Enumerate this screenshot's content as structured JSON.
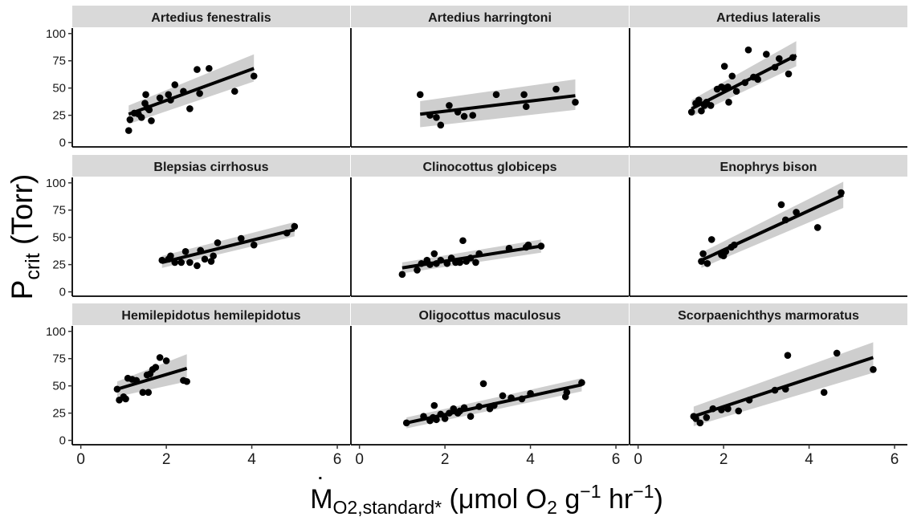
{
  "chart_data": {
    "type": "scatter",
    "layout": "facet-3x3",
    "xlabel": {
      "dot": "˙",
      "main": "M",
      "sub": "O2,standard*",
      "rest1": " (μmol O",
      "sub2": "2",
      "rest2": " g",
      "sup1": "−1",
      "rest3": " hr",
      "sup2": "−1",
      "rest4": ")"
    },
    "ylabel": {
      "main": "P",
      "sub": "crit",
      "rest": " (Torr)"
    },
    "xlim": [
      -0.2,
      6.3
    ],
    "ylim": [
      -4,
      105
    ],
    "x_ticks": [
      0,
      2,
      4,
      6
    ],
    "y_ticks": [
      0,
      25,
      50,
      75,
      100
    ],
    "fit": "linear regression with 95% confidence band",
    "panels": [
      {
        "title": "Artedius fenestralis",
        "points": [
          [
            1.12,
            11
          ],
          [
            1.15,
            21
          ],
          [
            1.25,
            27
          ],
          [
            1.35,
            26
          ],
          [
            1.42,
            23
          ],
          [
            1.5,
            36
          ],
          [
            1.52,
            44
          ],
          [
            1.55,
            32
          ],
          [
            1.6,
            30
          ],
          [
            1.65,
            20
          ],
          [
            1.85,
            41
          ],
          [
            2.05,
            44
          ],
          [
            2.1,
            39
          ],
          [
            2.2,
            53
          ],
          [
            2.4,
            47
          ],
          [
            2.55,
            31
          ],
          [
            2.72,
            67
          ],
          [
            2.78,
            45
          ],
          [
            3.0,
            68
          ],
          [
            3.6,
            47
          ],
          [
            4.05,
            61
          ]
        ],
        "fit": {
          "x": [
            1.12,
            4.05
          ],
          "y": [
            26,
            68
          ]
        },
        "band": {
          "lower": [
            17,
            56
          ],
          "upper": [
            34,
            81
          ]
        }
      },
      {
        "title": "Artedius harringtoni",
        "points": [
          [
            1.42,
            44
          ],
          [
            1.65,
            25
          ],
          [
            1.8,
            23
          ],
          [
            1.9,
            16
          ],
          [
            2.1,
            34
          ],
          [
            2.3,
            28
          ],
          [
            2.45,
            24
          ],
          [
            2.65,
            25
          ],
          [
            3.2,
            44
          ],
          [
            3.85,
            44
          ],
          [
            3.9,
            33
          ],
          [
            4.6,
            49
          ],
          [
            5.05,
            37
          ]
        ],
        "fit": {
          "x": [
            1.42,
            5.05
          ],
          "y": [
            26,
            43
          ]
        },
        "band": {
          "lower": [
            14,
            30
          ],
          "upper": [
            38,
            58
          ]
        }
      },
      {
        "title": "Artedius lateralis",
        "points": [
          [
            1.25,
            28
          ],
          [
            1.35,
            36
          ],
          [
            1.42,
            39
          ],
          [
            1.48,
            29
          ],
          [
            1.55,
            34
          ],
          [
            1.6,
            37
          ],
          [
            1.7,
            34
          ],
          [
            1.85,
            49
          ],
          [
            1.95,
            51
          ],
          [
            2.0,
            50
          ],
          [
            2.02,
            70
          ],
          [
            2.1,
            51
          ],
          [
            2.12,
            37
          ],
          [
            2.2,
            61
          ],
          [
            2.3,
            47
          ],
          [
            2.5,
            55
          ],
          [
            2.58,
            85
          ],
          [
            2.7,
            60
          ],
          [
            2.8,
            58
          ],
          [
            3.0,
            81
          ],
          [
            3.2,
            69
          ],
          [
            3.3,
            77
          ],
          [
            3.52,
            63
          ],
          [
            3.62,
            78
          ]
        ],
        "fit": {
          "x": [
            1.25,
            3.7
          ],
          "y": [
            31,
            80
          ]
        },
        "band": {
          "lower": [
            24,
            70
          ],
          "upper": [
            39,
            93
          ]
        }
      },
      {
        "title": "Blepsias cirrhosus",
        "points": [
          [
            1.9,
            29
          ],
          [
            2.05,
            30
          ],
          [
            2.1,
            33
          ],
          [
            2.2,
            27
          ],
          [
            2.35,
            27
          ],
          [
            2.45,
            37
          ],
          [
            2.55,
            27
          ],
          [
            2.72,
            24
          ],
          [
            2.8,
            38
          ],
          [
            2.9,
            30
          ],
          [
            3.05,
            28
          ],
          [
            3.1,
            33
          ],
          [
            3.2,
            45
          ],
          [
            3.75,
            49
          ],
          [
            4.05,
            43
          ],
          [
            4.82,
            54
          ],
          [
            5.0,
            60
          ]
        ],
        "fit": {
          "x": [
            1.9,
            5.0
          ],
          "y": [
            27,
            57
          ]
        },
        "band": {
          "lower": [
            22,
            51
          ],
          "upper": [
            33,
            64
          ]
        }
      },
      {
        "title": "Clinocottus globiceps",
        "points": [
          [
            1.0,
            16
          ],
          [
            1.35,
            20
          ],
          [
            1.45,
            26
          ],
          [
            1.58,
            29
          ],
          [
            1.65,
            25
          ],
          [
            1.75,
            35
          ],
          [
            1.8,
            26
          ],
          [
            1.9,
            29
          ],
          [
            2.05,
            26
          ],
          [
            2.15,
            31
          ],
          [
            2.25,
            27
          ],
          [
            2.35,
            27
          ],
          [
            2.42,
            47
          ],
          [
            2.5,
            28
          ],
          [
            2.6,
            31
          ],
          [
            2.72,
            27
          ],
          [
            2.8,
            35
          ],
          [
            3.5,
            40
          ],
          [
            3.9,
            41
          ],
          [
            3.95,
            43
          ],
          [
            4.25,
            42
          ]
        ],
        "fit": {
          "x": [
            1.0,
            4.25
          ],
          "y": [
            22,
            42
          ]
        },
        "band": {
          "lower": [
            17,
            36
          ],
          "upper": [
            27,
            48
          ]
        }
      },
      {
        "title": "Enophrys bison",
        "points": [
          [
            1.48,
            28
          ],
          [
            1.52,
            35
          ],
          [
            1.62,
            26
          ],
          [
            1.72,
            48
          ],
          [
            1.95,
            34
          ],
          [
            2.0,
            33
          ],
          [
            2.05,
            37
          ],
          [
            2.18,
            41
          ],
          [
            2.25,
            43
          ],
          [
            3.35,
            80
          ],
          [
            3.45,
            66
          ],
          [
            3.7,
            73
          ],
          [
            4.2,
            59
          ],
          [
            4.75,
            91
          ]
        ],
        "fit": {
          "x": [
            1.48,
            4.8
          ],
          "y": [
            29,
            89
          ]
        },
        "band": {
          "lower": [
            22,
            77
          ],
          "upper": [
            36,
            101
          ]
        }
      },
      {
        "title": "Hemilepidotus hemilepidotus",
        "points": [
          [
            0.85,
            47
          ],
          [
            0.9,
            37
          ],
          [
            1.0,
            40
          ],
          [
            1.05,
            38
          ],
          [
            1.1,
            57
          ],
          [
            1.2,
            56
          ],
          [
            1.3,
            55
          ],
          [
            1.45,
            44
          ],
          [
            1.55,
            60
          ],
          [
            1.58,
            44
          ],
          [
            1.62,
            61
          ],
          [
            1.68,
            65
          ],
          [
            1.75,
            67
          ],
          [
            1.85,
            76
          ],
          [
            2.0,
            73
          ],
          [
            2.4,
            55
          ],
          [
            2.48,
            54
          ]
        ],
        "fit": {
          "x": [
            0.85,
            2.48
          ],
          "y": [
            47,
            66
          ]
        },
        "band": {
          "lower": [
            40,
            54
          ],
          "upper": [
            54,
            79
          ]
        }
      },
      {
        "title": "Oligocottus maculosus",
        "points": [
          [
            1.1,
            16
          ],
          [
            1.5,
            22
          ],
          [
            1.65,
            18
          ],
          [
            1.72,
            21
          ],
          [
            1.75,
            32
          ],
          [
            1.8,
            19
          ],
          [
            1.9,
            24
          ],
          [
            2.0,
            20
          ],
          [
            2.1,
            25
          ],
          [
            2.2,
            29
          ],
          [
            2.3,
            25
          ],
          [
            2.35,
            27
          ],
          [
            2.45,
            30
          ],
          [
            2.6,
            22
          ],
          [
            2.8,
            31
          ],
          [
            2.9,
            52
          ],
          [
            3.05,
            29
          ],
          [
            3.15,
            32
          ],
          [
            3.35,
            41
          ],
          [
            3.55,
            39
          ],
          [
            3.8,
            38
          ],
          [
            4.0,
            43
          ],
          [
            4.82,
            40
          ],
          [
            4.85,
            44
          ],
          [
            5.2,
            53
          ]
        ],
        "fit": {
          "x": [
            1.1,
            5.2
          ],
          "y": [
            16,
            51
          ]
        },
        "band": {
          "lower": [
            11,
            45
          ],
          "upper": [
            21,
            57
          ]
        }
      },
      {
        "title": "Scorpaenichthys marmoratus",
        "points": [
          [
            1.3,
            22
          ],
          [
            1.35,
            20
          ],
          [
            1.45,
            16
          ],
          [
            1.6,
            21
          ],
          [
            1.75,
            29
          ],
          [
            1.95,
            28
          ],
          [
            2.1,
            29
          ],
          [
            2.35,
            27
          ],
          [
            2.6,
            37
          ],
          [
            3.2,
            46
          ],
          [
            3.45,
            47
          ],
          [
            3.5,
            78
          ],
          [
            4.35,
            44
          ],
          [
            4.65,
            80
          ],
          [
            5.5,
            65
          ]
        ],
        "fit": {
          "x": [
            1.3,
            5.5
          ],
          "y": [
            22,
            76
          ]
        },
        "band": {
          "lower": [
            13,
            62
          ],
          "upper": [
            31,
            90
          ]
        }
      }
    ]
  }
}
